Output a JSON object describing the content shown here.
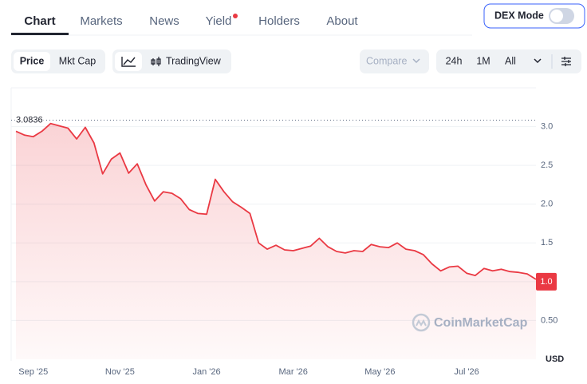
{
  "tabs": [
    "Chart",
    "Markets",
    "News",
    "Yield",
    "Holders",
    "About"
  ],
  "dex_mode": "DEX Mode",
  "toolbar": {
    "price": "Price",
    "mkt_cap": "Mkt Cap",
    "tradingview": "TradingView",
    "compare": "Compare",
    "ranges": [
      "24h",
      "1M",
      "All"
    ]
  },
  "chart_data": {
    "type": "line",
    "categories": [
      null,
      null,
      "Sep '25",
      null,
      null,
      null,
      null,
      null,
      null,
      null,
      null,
      null,
      "Nov '25",
      null,
      null,
      null,
      null,
      null,
      null,
      null,
      null,
      null,
      "Jan '26",
      null,
      null,
      null,
      null,
      null,
      null,
      null,
      null,
      null,
      "Mar '26",
      null,
      null,
      null,
      null,
      null,
      null,
      null,
      null,
      null,
      "May '26",
      null,
      null,
      null,
      null,
      null,
      null,
      null,
      null,
      null,
      "Jul '26",
      null,
      null,
      null,
      null,
      null,
      null,
      null,
      null
    ],
    "values": [
      2.94,
      2.89,
      2.87,
      2.94,
      3.04,
      3.01,
      2.98,
      2.84,
      2.99,
      2.79,
      2.39,
      2.58,
      2.66,
      2.4,
      2.52,
      2.25,
      2.04,
      2.16,
      2.14,
      2.07,
      1.93,
      1.88,
      1.87,
      2.32,
      2.16,
      2.03,
      1.96,
      1.88,
      1.5,
      1.42,
      1.47,
      1.41,
      1.4,
      1.43,
      1.46,
      1.56,
      1.45,
      1.39,
      1.37,
      1.4,
      1.39,
      1.48,
      1.45,
      1.44,
      1.5,
      1.42,
      1.4,
      1.35,
      1.23,
      1.14,
      1.19,
      1.2,
      1.11,
      1.08,
      1.17,
      1.14,
      1.16,
      1.13,
      1.12,
      1.1,
      1.03
    ],
    "color": "#ea3943",
    "ylim": [
      0,
      3.5
    ],
    "yticks": [
      {
        "value": 0.5,
        "label": "0.50"
      },
      {
        "value": 1,
        "label": "1.0"
      },
      1.5,
      {
        "value": 2,
        "label": "2.0"
      },
      2.5,
      {
        "value": 3,
        "label": "3.0"
      }
    ],
    "grid": true,
    "max_label": 3.0836,
    "last_price": {
      "value": 1,
      "label": "1.0"
    },
    "watermark": "CoinMarketCap",
    "currency": "USD"
  }
}
